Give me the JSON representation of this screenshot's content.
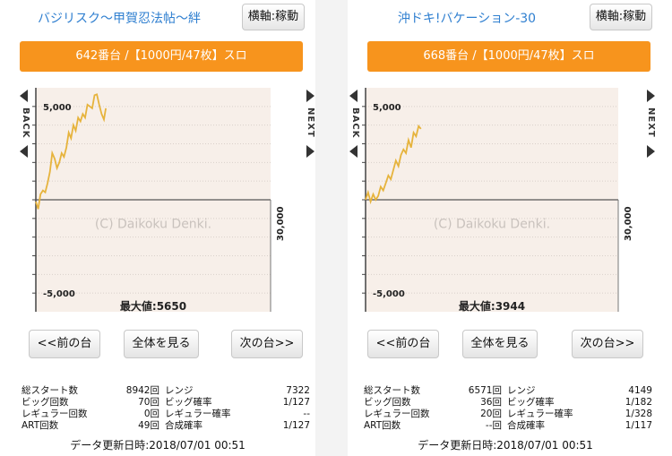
{
  "panels": [
    {
      "title": "バジリスク〜甲賀忍法帖〜絆",
      "axis_button": "横軸:稼動",
      "machine_info": "642番台 /【1000円/47枚】スロ",
      "back_label": "BACK",
      "next_label": "NEXT",
      "watermark": "(C) Daikoku Denki.",
      "max_label": "最大値:5650",
      "nav": {
        "prev": "<<前の台",
        "all": "全体を見る",
        "next": "次の台>>"
      },
      "stats": [
        {
          "l1": "総スタート数",
          "v1": "8942回",
          "l2": "レンジ",
          "v2": "7322"
        },
        {
          "l1": "ビッグ回数",
          "v1": "70回",
          "l2": "ビッグ確率",
          "v2": "1/127"
        },
        {
          "l1": "レギュラー回数",
          "v1": "0回",
          "l2": "レギュラー確率",
          "v2": "--"
        },
        {
          "l1": "ART回数",
          "v1": "49回",
          "l2": "合成確率",
          "v2": "1/127"
        }
      ],
      "updated": "データ更新日時:2018/07/01 00:51",
      "chart_data": {
        "type": "line",
        "y_ticks": [
          "5,000",
          "-5,000"
        ],
        "x_tick": "30,000",
        "ylim": [
          -6000,
          6000
        ],
        "xlim": [
          0,
          30000
        ],
        "x": [
          0,
          300,
          600,
          900,
          1200,
          1500,
          1800,
          2100,
          2400,
          2700,
          3000,
          3300,
          3600,
          3900,
          4200,
          4500,
          4800,
          5100,
          5400,
          5700,
          6000,
          6300,
          6600,
          6900,
          7200,
          7500,
          7800,
          8100,
          8400,
          8700,
          8942
        ],
        "y": [
          -100,
          -500,
          300,
          500,
          400,
          900,
          1500,
          2500,
          2200,
          1700,
          2000,
          2500,
          2300,
          2800,
          3600,
          3300,
          4000,
          3700,
          4400,
          4200,
          4600,
          4400,
          5100,
          5000,
          4900,
          5600,
          5650,
          5100,
          4600,
          4300,
          4900
        ],
        "grid": true,
        "line_color": "#e6b33c"
      }
    },
    {
      "title": "沖ドキ!バケーション-30",
      "axis_button": "横軸:稼動",
      "machine_info": "668番台 /【1000円/47枚】スロ",
      "back_label": "BACK",
      "next_label": "NEXT",
      "watermark": "(C) Daikoku Denki.",
      "max_label": "最大値:3944",
      "nav": {
        "prev": "<<前の台",
        "all": "全体を見る",
        "next": "次の台>>"
      },
      "stats": [
        {
          "l1": "総スタート数",
          "v1": "6571回",
          "l2": "レンジ",
          "v2": "4149"
        },
        {
          "l1": "ビッグ回数",
          "v1": "36回",
          "l2": "ビッグ確率",
          "v2": "1/182"
        },
        {
          "l1": "レギュラー回数",
          "v1": "20回",
          "l2": "レギュラー確率",
          "v2": "1/328"
        },
        {
          "l1": "ART回数",
          "v1": "--回",
          "l2": "合成確率",
          "v2": "1/117"
        }
      ],
      "updated": "データ更新日時:2018/07/01 00:51",
      "chart_data": {
        "type": "line",
        "y_ticks": [
          "5,000",
          "-5,000"
        ],
        "x_tick": "30,000",
        "ylim": [
          -6000,
          6000
        ],
        "xlim": [
          0,
          30000
        ],
        "x": [
          0,
          300,
          600,
          900,
          1200,
          1500,
          1800,
          2100,
          2400,
          2700,
          3000,
          3300,
          3600,
          3900,
          4200,
          4500,
          4800,
          5100,
          5400,
          5700,
          6000,
          6300,
          6571
        ],
        "y": [
          0,
          400,
          -100,
          300,
          0,
          200,
          700,
          500,
          900,
          1300,
          1100,
          1600,
          2100,
          1800,
          2400,
          2700,
          2500,
          3200,
          2800,
          3600,
          3400,
          3944,
          3800
        ],
        "grid": true,
        "line_color": "#e6b33c"
      }
    }
  ]
}
